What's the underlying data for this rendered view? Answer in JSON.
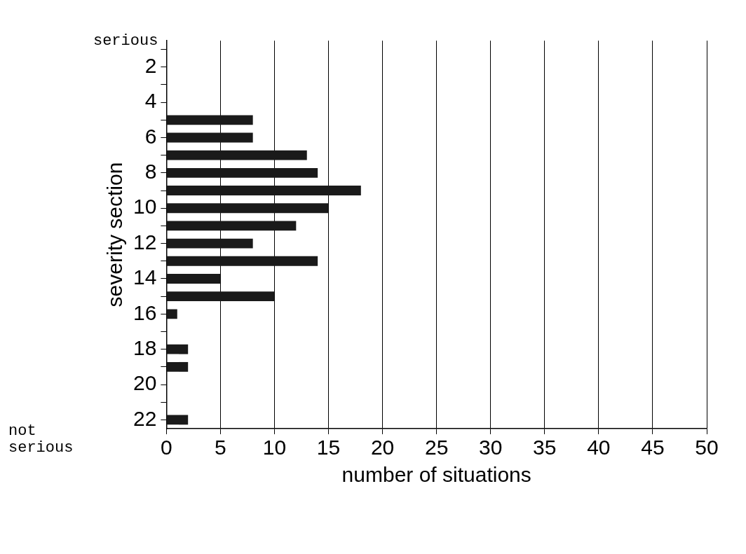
{
  "chart_data": {
    "type": "bar",
    "orientation": "horizontal",
    "ylabel": "severity section",
    "xlabel": "number of situations",
    "categories": [
      null,
      "2",
      null,
      "4",
      null,
      "6",
      null,
      "8",
      null,
      "10",
      null,
      "12",
      null,
      "14",
      null,
      "16",
      null,
      "18",
      null,
      "20",
      null,
      "22"
    ],
    "values": [
      0,
      0,
      0,
      0,
      8,
      8,
      13,
      14,
      18,
      15,
      12,
      8,
      14,
      5,
      10,
      1,
      0,
      2,
      2,
      0,
      0,
      2
    ],
    "color": "#1a1a1a",
    "xlim": [
      0,
      50
    ],
    "xticks": [
      0,
      5,
      10,
      15,
      20,
      25,
      30,
      35,
      40,
      45,
      50
    ],
    "grid": "x",
    "legend": false,
    "annotations": [
      "serious",
      "not serious"
    ]
  }
}
